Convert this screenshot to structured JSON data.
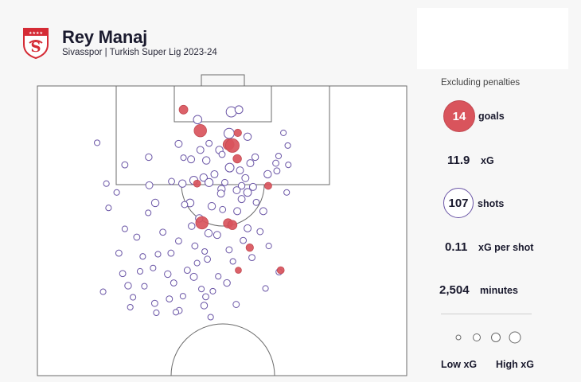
{
  "header": {
    "player": "Rey Manaj",
    "subtitle": "Sivasspor | Turkish Super Lig 2023-24"
  },
  "stats": {
    "note": "Excluding penalties",
    "goals": "14",
    "goals_label": "goals",
    "xg": "11.9",
    "xg_label": "xG",
    "shots": "107",
    "shots_label": "shots",
    "xg_per_shot": "0.11",
    "xg_per_shot_label": "xG per shot",
    "minutes": "2,504",
    "minutes_label": "minutes"
  },
  "legend": {
    "low": "Low xG",
    "high": "High xG"
  },
  "colors": {
    "goal": "#d9545c",
    "shot_stroke": "#6a55a6",
    "pitch_line": "#6b6b6b",
    "badge_red": "#d52b35"
  },
  "chart_data": {
    "type": "scatter",
    "x_axis": "pitch width, metres from left touchline (0-68)",
    "y_axis": "distance from goal line, metres (0-52.5)",
    "series": [
      {
        "name": "goals",
        "points": [
          [
            26.9,
            4.3,
            0.1
          ],
          [
            30.0,
            8.1,
            0.28
          ],
          [
            35.2,
            10.6,
            0.2
          ],
          [
            35.9,
            10.8,
            0.36
          ],
          [
            36.9,
            8.5,
            0.06
          ],
          [
            29.4,
            17.7,
            0.05
          ],
          [
            36.8,
            13.2,
            0.09
          ],
          [
            42.5,
            18.1,
            0.05
          ],
          [
            30.3,
            24.8,
            0.28
          ],
          [
            35.1,
            24.9,
            0.12
          ],
          [
            35.9,
            25.2,
            0.12
          ],
          [
            39.1,
            29.3,
            0.06
          ],
          [
            37.0,
            33.4,
            0.03
          ],
          [
            44.8,
            33.4,
            0.05
          ]
        ]
      },
      {
        "name": "shots",
        "points": [
          [
            29.5,
            6.1,
            0.09
          ],
          [
            35.7,
            4.7,
            0.16
          ],
          [
            37.1,
            4.3,
            0.07
          ],
          [
            38.7,
            9.2,
            0.06
          ],
          [
            35.3,
            8.6,
            0.16
          ],
          [
            11.0,
            10.3,
            0.02
          ],
          [
            26.0,
            10.5,
            0.05
          ],
          [
            30.0,
            11.6,
            0.05
          ],
          [
            33.5,
            11.6,
            0.06
          ],
          [
            20.5,
            12.9,
            0.04
          ],
          [
            28.3,
            13.3,
            0.05
          ],
          [
            31.1,
            13.5,
            0.06
          ],
          [
            34.0,
            12.4,
            0.03
          ],
          [
            40.1,
            12.9,
            0.04
          ],
          [
            43.9,
            14.0,
            0.03
          ],
          [
            16.1,
            14.3,
            0.03
          ],
          [
            35.4,
            14.8,
            0.1
          ],
          [
            37.3,
            15.3,
            0.05
          ],
          [
            39.2,
            14.0,
            0.05
          ],
          [
            44.1,
            15.4,
            0.03
          ],
          [
            30.6,
            16.6,
            0.06
          ],
          [
            32.6,
            16.0,
            0.05
          ],
          [
            34.5,
            17.5,
            0.03
          ],
          [
            26.7,
            17.7,
            0.06
          ],
          [
            28.8,
            17.1,
            0.08
          ],
          [
            33.9,
            18.7,
            0.06
          ],
          [
            38.3,
            16.7,
            0.05
          ],
          [
            39.7,
            18.3,
            0.05
          ],
          [
            42.4,
            16.0,
            0.06
          ],
          [
            20.6,
            18.0,
            0.05
          ],
          [
            14.6,
            19.3,
            0.02
          ],
          [
            31.6,
            17.5,
            0.08
          ],
          [
            37.6,
            18.1,
            0.04
          ],
          [
            33.8,
            19.5,
            0.05
          ],
          [
            36.7,
            18.9,
            0.05
          ],
          [
            38.7,
            19.3,
            0.07
          ],
          [
            21.7,
            21.2,
            0.06
          ],
          [
            28.1,
            21.2,
            0.07
          ],
          [
            32.1,
            21.8,
            0.06
          ],
          [
            37.6,
            20.5,
            0.05
          ],
          [
            29.8,
            24.0,
            0.06
          ],
          [
            36.8,
            22.7,
            0.05
          ],
          [
            41.6,
            22.7,
            0.05
          ],
          [
            28.4,
            25.4,
            0.04
          ],
          [
            31.5,
            26.7,
            0.06
          ],
          [
            38.7,
            25.8,
            0.05
          ],
          [
            33.1,
            27.0,
            0.05
          ],
          [
            18.3,
            27.4,
            0.03
          ],
          [
            26.0,
            28.1,
            0.03
          ],
          [
            29.0,
            29.0,
            0.03
          ],
          [
            24.6,
            30.3,
            0.03
          ],
          [
            15.0,
            30.3,
            0.03
          ],
          [
            22.2,
            30.5,
            0.02
          ],
          [
            21.3,
            33.0,
            0.02
          ],
          [
            27.6,
            33.4,
            0.03
          ],
          [
            31.3,
            31.4,
            0.03
          ],
          [
            42.6,
            29.0,
            0.02
          ],
          [
            24.0,
            34.1,
            0.04
          ],
          [
            28.8,
            34.6,
            0.05
          ],
          [
            15.7,
            34.0,
            0.03
          ],
          [
            25.1,
            35.7,
            0.03
          ],
          [
            16.7,
            36.2,
            0.04
          ],
          [
            12.1,
            37.3,
            0.02
          ],
          [
            44.5,
            33.7,
            0.03
          ],
          [
            17.6,
            38.3,
            0.02
          ],
          [
            21.6,
            39.4,
            0.03
          ],
          [
            31.0,
            38.2,
            0.03
          ],
          [
            34.9,
            35.7,
            0.04
          ],
          [
            17.1,
            40.1,
            0.02
          ],
          [
            30.7,
            39.8,
            0.04
          ],
          [
            26.1,
            40.7,
            0.03
          ],
          [
            25.5,
            41.0,
            0.02
          ],
          [
            21.9,
            41.1,
            0.02
          ],
          [
            31.9,
            41.9,
            0.02
          ],
          [
            36.6,
            39.6,
            0.03
          ],
          [
            42.0,
            36.7,
            0.02
          ],
          [
            46.1,
            10.8,
            0.02
          ],
          [
            46.2,
            14.3,
            0.02
          ],
          [
            45.9,
            19.3,
            0.02
          ],
          [
            44.4,
            12.7,
            0.02
          ],
          [
            12.7,
            17.7,
            0.02
          ],
          [
            13.1,
            22.1,
            0.02
          ],
          [
            16.1,
            25.9,
            0.02
          ],
          [
            19.7,
            36.3,
            0.02
          ],
          [
            24.7,
            17.3,
            0.03
          ],
          [
            26.9,
            13.0,
            0.02
          ],
          [
            31.6,
            10.4,
            0.03
          ],
          [
            27.1,
            21.5,
            0.03
          ],
          [
            23.1,
            26.5,
            0.03
          ],
          [
            20.4,
            23.0,
            0.02
          ],
          [
            34.1,
            22.4,
            0.03
          ],
          [
            40.3,
            21.1,
            0.03
          ],
          [
            41.0,
            26.4,
            0.03
          ],
          [
            35.3,
            29.7,
            0.03
          ],
          [
            19.4,
            30.9,
            0.02
          ],
          [
            18.9,
            33.6,
            0.02
          ],
          [
            29.4,
            32.1,
            0.02
          ],
          [
            33.3,
            34.5,
            0.02
          ],
          [
            26.8,
            38.1,
            0.02
          ],
          [
            24.3,
            38.6,
            0.03
          ],
          [
            30.2,
            36.8,
            0.02
          ],
          [
            32.3,
            37.2,
            0.02
          ],
          [
            36.0,
            31.8,
            0.02
          ],
          [
            39.5,
            31.1,
            0.03
          ],
          [
            45.3,
            8.5,
            0.02
          ],
          [
            37.9,
            28.0,
            0.03
          ],
          [
            30.8,
            30.0,
            0.02
          ]
        ]
      }
    ],
    "xlim": [
      0,
      68
    ],
    "ylim": [
      0,
      52.5
    ],
    "legend": [
      "Low xG",
      "High xG"
    ]
  }
}
